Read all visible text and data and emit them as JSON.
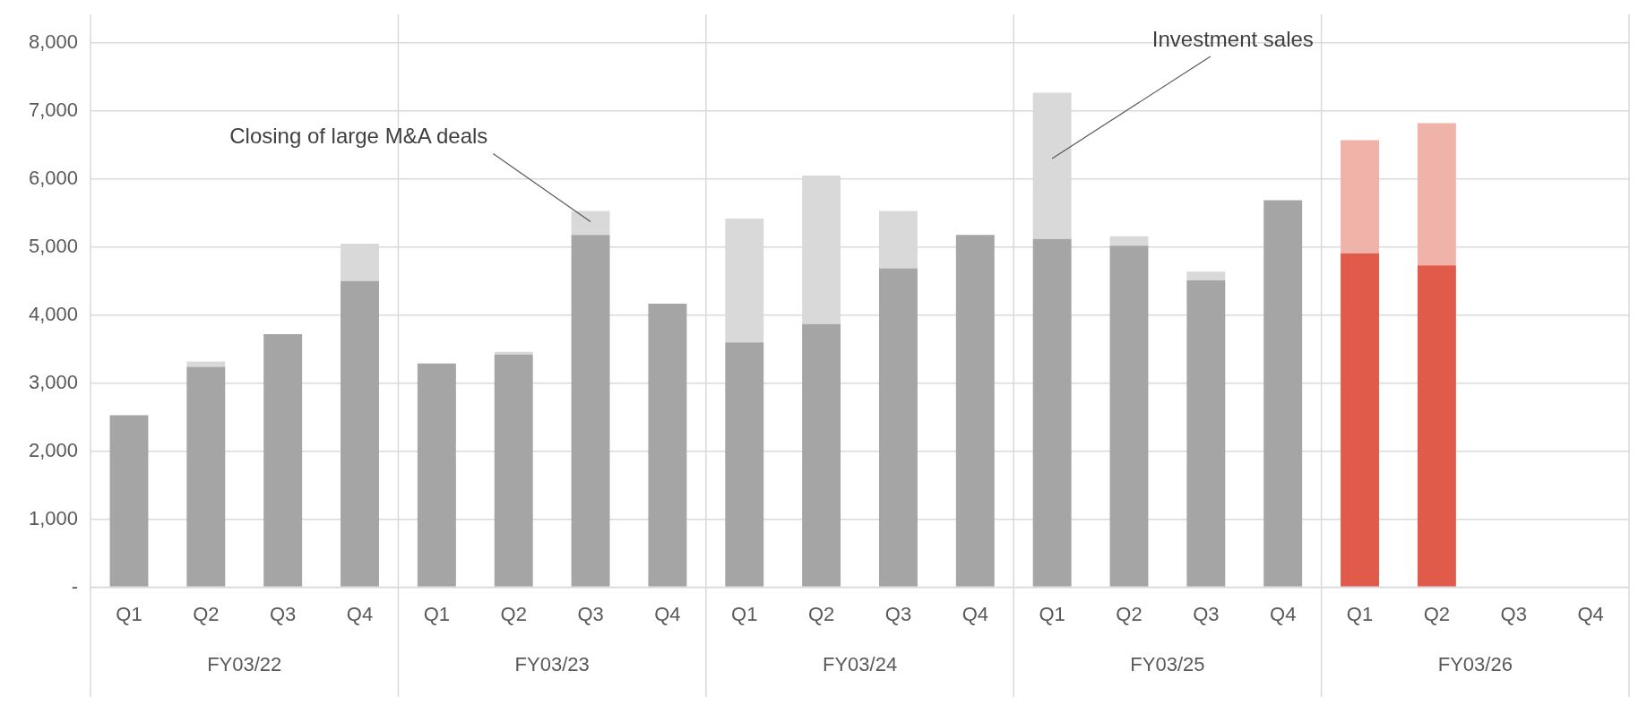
{
  "chart_data": {
    "type": "bar",
    "stacked": true,
    "legend": false,
    "grid": "y",
    "categories": [
      "Q1",
      "Q2",
      "Q3",
      "Q4",
      "Q1",
      "Q2",
      "Q3",
      "Q4",
      "Q1",
      "Q2",
      "Q3",
      "Q4",
      "Q1",
      "Q2",
      "Q3",
      "Q4",
      "Q1",
      "Q2",
      "Q3",
      "Q4"
    ],
    "series": [
      {
        "colors": [
          "#a5a5a5",
          "#a5a5a5",
          "#a5a5a5",
          "#a5a5a5",
          "#a5a5a5",
          "#a5a5a5",
          "#a5a5a5",
          "#a5a5a5",
          "#a5a5a5",
          "#a5a5a5",
          "#a5a5a5",
          "#a5a5a5",
          "#a5a5a5",
          "#a5a5a5",
          "#a5a5a5",
          "#a5a5a5",
          "#e15b4b",
          "#e15b4b",
          "#e15b4b",
          "#e15b4b"
        ],
        "values": [
          2530,
          3240,
          3720,
          4500,
          3290,
          3420,
          5180,
          4170,
          3600,
          3870,
          4690,
          5180,
          5120,
          5020,
          4510,
          5690,
          4910,
          4730,
          null,
          null
        ]
      },
      {
        "colors": [
          "#d9d9d9",
          "#d9d9d9",
          "#d9d9d9",
          "#d9d9d9",
          "#d9d9d9",
          "#d9d9d9",
          "#d9d9d9",
          "#d9d9d9",
          "#d9d9d9",
          "#d9d9d9",
          "#d9d9d9",
          "#d9d9d9",
          "#d9d9d9",
          "#d9d9d9",
          "#d9d9d9",
          "#d9d9d9",
          "#f0b3aa",
          "#f0b3aa",
          "#f0b3aa",
          "#f0b3aa"
        ],
        "values": [
          null,
          80,
          null,
          550,
          null,
          40,
          350,
          null,
          1820,
          2180,
          840,
          null,
          2150,
          140,
          130,
          null,
          1660,
          2090,
          null,
          null
        ]
      }
    ],
    "ylim": [
      0,
      8000
    ],
    "yticks": [
      {
        "value": 0,
        "label": "-"
      },
      {
        "value": 1000,
        "label": "1,000"
      },
      {
        "value": 2000,
        "label": "2,000"
      },
      {
        "value": 3000,
        "label": "3,000"
      },
      {
        "value": 4000,
        "label": "4,000"
      },
      {
        "value": 5000,
        "label": "5,000"
      },
      {
        "value": 6000,
        "label": "6,000"
      },
      {
        "value": 7000,
        "label": "7,000"
      },
      {
        "value": 8000,
        "label": "8,000"
      }
    ],
    "annotations": [
      "Closing of large M&A deals",
      "Investment sales",
      "FY03/22",
      "FY03/23",
      "FY03/24",
      "FY03/25",
      "FY03/26"
    ]
  }
}
